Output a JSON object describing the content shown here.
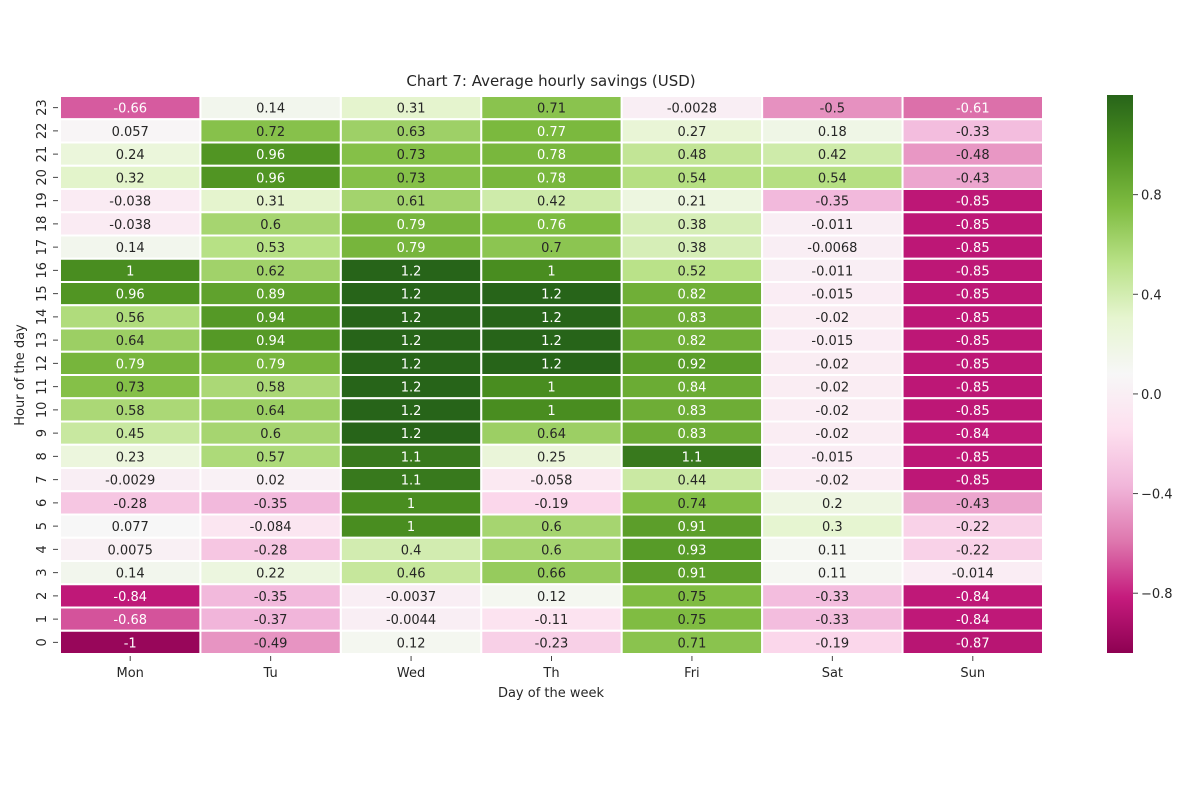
{
  "chart_data": {
    "type": "heatmap",
    "title": "Chart 7: Average hourly savings (USD)",
    "xlabel": "Day of the week",
    "ylabel": "Hour of the day",
    "x_categories": [
      "Mon",
      "Tu",
      "Wed",
      "Th",
      "Fri",
      "Sat",
      "Sun"
    ],
    "y_categories": [
      "23",
      "22",
      "21",
      "20",
      "19",
      "18",
      "17",
      "16",
      "15",
      "14",
      "13",
      "12",
      "11",
      "10",
      "9",
      "8",
      "7",
      "6",
      "5",
      "4",
      "3",
      "2",
      "1",
      "0"
    ],
    "values": [
      [
        -0.66,
        0.14,
        0.31,
        0.71,
        -0.0028,
        -0.5,
        -0.61
      ],
      [
        0.057,
        0.72,
        0.63,
        0.77,
        0.27,
        0.18,
        -0.33
      ],
      [
        0.24,
        0.96,
        0.73,
        0.78,
        0.48,
        0.42,
        -0.48
      ],
      [
        0.32,
        0.96,
        0.73,
        0.78,
        0.54,
        0.54,
        -0.43
      ],
      [
        -0.038,
        0.31,
        0.61,
        0.42,
        0.21,
        -0.35,
        -0.85
      ],
      [
        -0.038,
        0.6,
        0.79,
        0.76,
        0.38,
        -0.011,
        -0.85
      ],
      [
        0.14,
        0.53,
        0.79,
        0.7,
        0.38,
        -0.0068,
        -0.85
      ],
      [
        1,
        0.62,
        1.2,
        1,
        0.52,
        -0.011,
        -0.85
      ],
      [
        0.96,
        0.89,
        1.2,
        1.2,
        0.82,
        -0.015,
        -0.85
      ],
      [
        0.56,
        0.94,
        1.2,
        1.2,
        0.83,
        -0.02,
        -0.85
      ],
      [
        0.64,
        0.94,
        1.2,
        1.2,
        0.82,
        -0.015,
        -0.85
      ],
      [
        0.79,
        0.79,
        1.2,
        1.2,
        0.92,
        -0.02,
        -0.85
      ],
      [
        0.73,
        0.58,
        1.2,
        1,
        0.84,
        -0.02,
        -0.85
      ],
      [
        0.58,
        0.64,
        1.2,
        1,
        0.83,
        -0.02,
        -0.85
      ],
      [
        0.45,
        0.6,
        1.2,
        0.64,
        0.83,
        -0.02,
        -0.84
      ],
      [
        0.23,
        0.57,
        1.1,
        0.25,
        1.1,
        -0.015,
        -0.85
      ],
      [
        -0.0029,
        0.02,
        1.1,
        -0.058,
        0.44,
        -0.02,
        -0.85
      ],
      [
        -0.28,
        -0.35,
        1,
        -0.19,
        0.74,
        0.2,
        -0.43
      ],
      [
        0.077,
        -0.084,
        1,
        0.6,
        0.91,
        0.3,
        -0.22
      ],
      [
        0.0075,
        -0.28,
        0.4,
        0.6,
        0.93,
        0.11,
        -0.22
      ],
      [
        0.14,
        0.22,
        0.46,
        0.66,
        0.91,
        0.11,
        -0.014
      ],
      [
        -0.84,
        -0.35,
        -0.0037,
        0.12,
        0.75,
        -0.33,
        -0.84
      ],
      [
        -0.68,
        -0.37,
        -0.0044,
        -0.11,
        0.75,
        -0.33,
        -0.84
      ],
      [
        -1,
        -0.49,
        0.12,
        -0.23,
        0.71,
        -0.19,
        -0.87
      ]
    ],
    "colormap": "PiYG",
    "colormap_stops": [
      "#8e0152",
      "#c51b7d",
      "#de77ae",
      "#f1b6da",
      "#fde0ef",
      "#f7f7f7",
      "#e6f5d0",
      "#b8e186",
      "#7fbc41",
      "#4d9221",
      "#276419"
    ],
    "color_range": [
      -1.04,
      1.2
    ],
    "colorbar": {
      "ticks": [
        0.8,
        0.4,
        0.0,
        -0.4,
        -0.8
      ],
      "tick_labels": [
        "0.8",
        "0.4",
        "0.0",
        "−0.4",
        "−0.8"
      ]
    },
    "annotated": true,
    "grid": false
  }
}
